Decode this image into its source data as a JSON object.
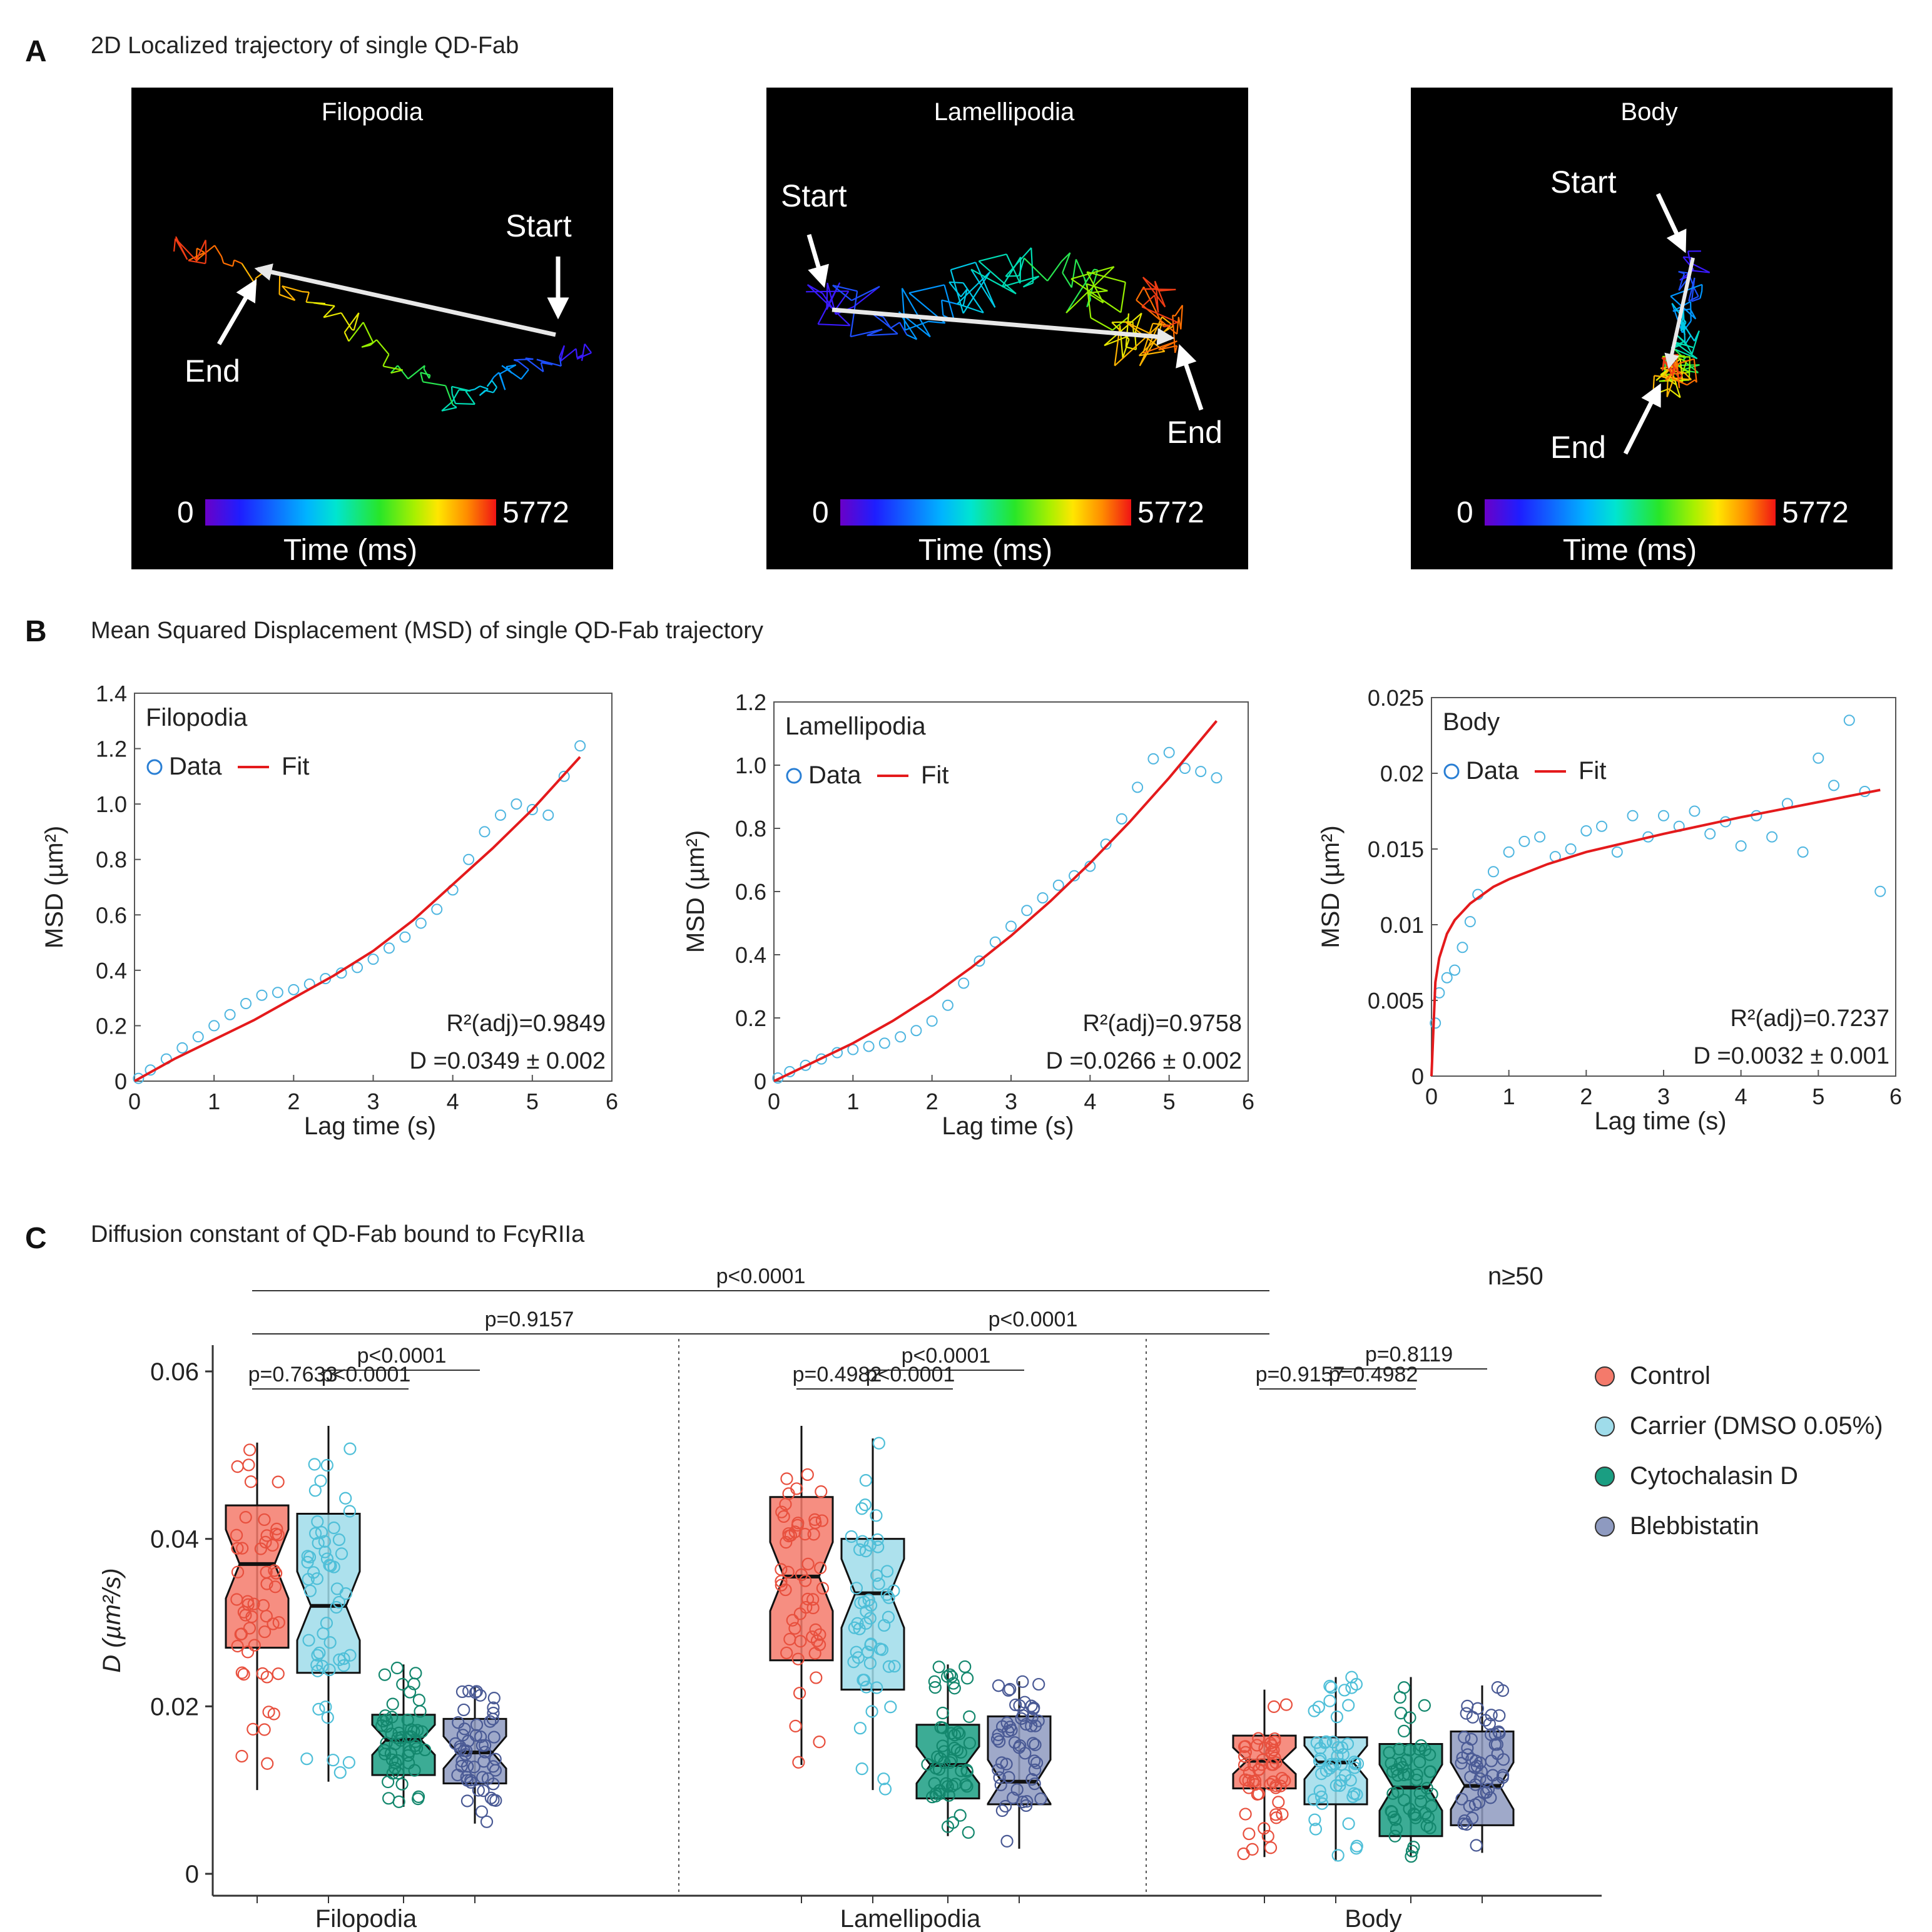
{
  "panel_a": {
    "letter": "A",
    "title": "2D Localized trajectory of single QD-Fab",
    "colorbar": {
      "min_label": "0",
      "max_label": "5772",
      "label": "Time (ms)"
    },
    "start_label": "Start",
    "end_label": "End",
    "panels": [
      {
        "title": "Filopodia"
      },
      {
        "title": "Lamellipodia"
      },
      {
        "title": "Body"
      }
    ]
  },
  "panel_b": {
    "letter": "B",
    "title": "Mean Squared Displacement (MSD) of single QD-Fab trajectory",
    "legend_data": "Data",
    "legend_fit": "Fit",
    "xlabel": "Lag time (s)",
    "ylabel": "MSD (µm²)",
    "colors": {
      "data": "#4fb6e0",
      "fit": "#e41a1c"
    }
  },
  "panel_c": {
    "letter": "C",
    "title": "Diffusion constant of QD-Fab bound to FcγRIIa",
    "n_label": "n≥50",
    "ylabel": "D (µm²/s)",
    "legend": [
      {
        "label": "Control",
        "color": "#f47a6b",
        "edge": "#e8503e"
      },
      {
        "label": "Carrier (DMSO 0.05%)",
        "color": "#9fdcea",
        "edge": "#4fbfd8"
      },
      {
        "label": "Cytochalasin D",
        "color": "#1a9e82",
        "edge": "#13876d"
      },
      {
        "label": "Blebbistatin",
        "color": "#8e9ac0",
        "edge": "#4a5a95"
      }
    ]
  },
  "chart_data": [
    {
      "type": "scatter",
      "title": "Filopodia",
      "xlabel": "Lag time (s)",
      "ylabel": "MSD (µm²)",
      "xlim": [
        0,
        6
      ],
      "ylim": [
        0,
        1.4
      ],
      "xticks": [
        "0",
        "1",
        "2",
        "3",
        "4",
        "5",
        "6"
      ],
      "yticks": [
        "0",
        "0.2",
        "0.4",
        "0.6",
        "0.8",
        "1.0",
        "1.2",
        "1.4"
      ],
      "series": [
        {
          "name": "Data",
          "x": [
            0.05,
            0.2,
            0.4,
            0.6,
            0.8,
            1.0,
            1.2,
            1.4,
            1.6,
            1.8,
            2.0,
            2.2,
            2.4,
            2.6,
            2.8,
            3.0,
            3.2,
            3.4,
            3.6,
            3.8,
            4.0,
            4.2,
            4.4,
            4.6,
            4.8,
            5.0,
            5.2,
            5.4,
            5.6
          ],
          "y": [
            0.01,
            0.04,
            0.08,
            0.12,
            0.16,
            0.2,
            0.24,
            0.28,
            0.31,
            0.32,
            0.33,
            0.35,
            0.37,
            0.39,
            0.41,
            0.44,
            0.48,
            0.52,
            0.57,
            0.62,
            0.69,
            0.8,
            0.9,
            0.96,
            1.0,
            0.98,
            0.96,
            1.1,
            1.21
          ]
        },
        {
          "name": "Fit",
          "x": [
            0,
            0.5,
            1,
            1.5,
            2,
            2.5,
            3,
            3.5,
            4,
            4.5,
            5,
            5.6
          ],
          "y": [
            0,
            0.08,
            0.15,
            0.22,
            0.3,
            0.38,
            0.47,
            0.58,
            0.71,
            0.84,
            0.98,
            1.17
          ]
        }
      ],
      "annotations": [
        "R²(adj)=0.9849",
        "D =0.0349 ± 0.002"
      ]
    },
    {
      "type": "scatter",
      "title": "Lamellipodia",
      "xlabel": "Lag time (s)",
      "ylabel": "MSD (µm²)",
      "xlim": [
        0,
        6
      ],
      "ylim": [
        0,
        1.2
      ],
      "xticks": [
        "0",
        "1",
        "2",
        "3",
        "4",
        "5",
        "6"
      ],
      "yticks": [
        "0",
        "0.2",
        "0.4",
        "0.6",
        "0.8",
        "1.0",
        "1.2"
      ],
      "series": [
        {
          "name": "Data",
          "x": [
            0.05,
            0.2,
            0.4,
            0.6,
            0.8,
            1.0,
            1.2,
            1.4,
            1.6,
            1.8,
            2.0,
            2.2,
            2.4,
            2.6,
            2.8,
            3.0,
            3.2,
            3.4,
            3.6,
            3.8,
            4.0,
            4.2,
            4.4,
            4.6,
            4.8,
            5.0,
            5.2,
            5.4,
            5.6
          ],
          "y": [
            0.01,
            0.03,
            0.05,
            0.07,
            0.09,
            0.1,
            0.11,
            0.12,
            0.14,
            0.16,
            0.19,
            0.24,
            0.31,
            0.38,
            0.44,
            0.49,
            0.54,
            0.58,
            0.62,
            0.65,
            0.68,
            0.75,
            0.83,
            0.93,
            1.02,
            1.04,
            0.99,
            0.98,
            0.96
          ]
        },
        {
          "name": "Fit",
          "x": [
            0,
            0.5,
            1,
            1.5,
            2,
            2.5,
            3,
            3.5,
            4,
            4.5,
            5,
            5.6
          ],
          "y": [
            0,
            0.06,
            0.12,
            0.19,
            0.27,
            0.36,
            0.46,
            0.57,
            0.69,
            0.82,
            0.96,
            1.14
          ]
        }
      ],
      "annotations": [
        "R²(adj)=0.9758",
        "D =0.0266 ± 0.002"
      ]
    },
    {
      "type": "scatter",
      "title": "Body",
      "xlabel": "Lag time (s)",
      "ylabel": "MSD (µm²)",
      "xlim": [
        0,
        6
      ],
      "ylim": [
        0,
        0.025
      ],
      "xticks": [
        "0",
        "1",
        "2",
        "3",
        "4",
        "5",
        "6"
      ],
      "yticks": [
        "0",
        "0.005",
        "0.01",
        "0.015",
        "0.02",
        "0.025"
      ],
      "series": [
        {
          "name": "Data",
          "x": [
            0.05,
            0.1,
            0.2,
            0.3,
            0.4,
            0.5,
            0.6,
            0.8,
            1.0,
            1.2,
            1.4,
            1.6,
            1.8,
            2.0,
            2.2,
            2.4,
            2.6,
            2.8,
            3.0,
            3.2,
            3.4,
            3.6,
            3.8,
            4.0,
            4.2,
            4.4,
            4.6,
            4.8,
            5.0,
            5.2,
            5.4,
            5.6,
            5.8
          ],
          "y": [
            0.0035,
            0.0055,
            0.0065,
            0.007,
            0.0085,
            0.0102,
            0.012,
            0.0135,
            0.0148,
            0.0155,
            0.0158,
            0.0145,
            0.015,
            0.0162,
            0.0165,
            0.0148,
            0.0172,
            0.0158,
            0.0172,
            0.0165,
            0.0175,
            0.016,
            0.0168,
            0.0152,
            0.0172,
            0.0158,
            0.018,
            0.0148,
            0.021,
            0.0192,
            0.0235,
            0.0188,
            0.0122
          ]
        },
        {
          "name": "Fit",
          "x": [
            0,
            0.05,
            0.1,
            0.2,
            0.3,
            0.5,
            0.8,
            1,
            1.5,
            2,
            3,
            4,
            5,
            5.8
          ],
          "y": [
            0,
            0.0062,
            0.0078,
            0.0094,
            0.0103,
            0.0114,
            0.0125,
            0.013,
            0.014,
            0.0148,
            0.016,
            0.0171,
            0.0181,
            0.0189
          ]
        }
      ],
      "annotations": [
        "R²(adj)=0.7237",
        "D =0.0032 ± 0.001"
      ]
    },
    {
      "type": "box",
      "title": "",
      "ylabel": "D (µm²/s)",
      "ylim": [
        0,
        0.062
      ],
      "yticks": [
        "0",
        "0.02",
        "0.04",
        "0.06"
      ],
      "groups": [
        "Filopodia",
        "Lamellipodia",
        "Body"
      ],
      "series_names": [
        "Control",
        "Carrier (DMSO 0.05%)",
        "Cytochalasin D",
        "Blebbistatin"
      ],
      "boxes": [
        {
          "group": "Filopodia",
          "series": "Control",
          "min": 0.01,
          "q1": 0.027,
          "median": 0.037,
          "q3": 0.044,
          "max": 0.0515
        },
        {
          "group": "Filopodia",
          "series": "Carrier (DMSO 0.05%)",
          "min": 0.011,
          "q1": 0.024,
          "median": 0.032,
          "q3": 0.043,
          "max": 0.0535
        },
        {
          "group": "Filopodia",
          "series": "Cytochalasin D",
          "min": 0.008,
          "q1": 0.0118,
          "median": 0.016,
          "q3": 0.019,
          "max": 0.025
        },
        {
          "group": "Filopodia",
          "series": "Blebbistatin",
          "min": 0.006,
          "q1": 0.0108,
          "median": 0.0145,
          "q3": 0.0185,
          "max": 0.0225
        },
        {
          "group": "Lamellipodia",
          "series": "Control",
          "min": 0.013,
          "q1": 0.0255,
          "median": 0.0355,
          "q3": 0.045,
          "max": 0.0535
        },
        {
          "group": "Lamellipodia",
          "series": "Carrier (DMSO 0.05%)",
          "min": 0.01,
          "q1": 0.022,
          "median": 0.0335,
          "q3": 0.04,
          "max": 0.052
        },
        {
          "group": "Lamellipodia",
          "series": "Cytochalasin D",
          "min": 0.0045,
          "q1": 0.009,
          "median": 0.013,
          "q3": 0.0178,
          "max": 0.025
        },
        {
          "group": "Lamellipodia",
          "series": "Blebbistatin",
          "min": 0.003,
          "q1": 0.0083,
          "median": 0.011,
          "q3": 0.0188,
          "max": 0.023
        },
        {
          "group": "Body",
          "series": "Control",
          "min": 0.002,
          "q1": 0.0102,
          "median": 0.0135,
          "q3": 0.0165,
          "max": 0.022
        },
        {
          "group": "Body",
          "series": "Carrier (DMSO 0.05%)",
          "min": 0.0015,
          "q1": 0.0083,
          "median": 0.0133,
          "q3": 0.0163,
          "max": 0.0235
        },
        {
          "group": "Body",
          "series": "Cytochalasin D",
          "min": 0.002,
          "q1": 0.0045,
          "median": 0.0103,
          "q3": 0.0155,
          "max": 0.0235
        },
        {
          "group": "Body",
          "series": "Blebbistatin",
          "min": 0.0025,
          "q1": 0.0058,
          "median": 0.0105,
          "q3": 0.017,
          "max": 0.0225
        }
      ],
      "significance": [
        {
          "label": "p<0.0001",
          "from_group": "Filopodia",
          "from_series": "Control",
          "to_group": "Body",
          "to_series": "Control"
        },
        {
          "label": "p=0.9157",
          "from_group": "Filopodia",
          "from_series": "Control",
          "to_group": "Lamellipodia",
          "to_series": "Control"
        },
        {
          "label": "p<0.0001",
          "from_group": "Lamellipodia",
          "from_series": "Control",
          "to_group": "Body",
          "to_series": "Control"
        },
        {
          "label": "p<0.0001",
          "from_group": "Filopodia",
          "from_series": "Carrier (DMSO 0.05%)",
          "to_group": "Filopodia",
          "to_series": "Blebbistatin"
        },
        {
          "label": "p=0.7633",
          "from_group": "Filopodia",
          "from_series": "Control",
          "to_group": "Filopodia",
          "to_series": "Carrier (DMSO 0.05%)"
        },
        {
          "label": "p<0.0001",
          "from_group": "Filopodia",
          "from_series": "Carrier (DMSO 0.05%)",
          "to_group": "Filopodia",
          "to_series": "Cytochalasin D"
        },
        {
          "label": "p<0.0001",
          "from_group": "Lamellipodia",
          "from_series": "Carrier (DMSO 0.05%)",
          "to_group": "Lamellipodia",
          "to_series": "Blebbistatin"
        },
        {
          "label": "p=0.4982",
          "from_group": "Lamellipodia",
          "from_series": "Control",
          "to_group": "Lamellipodia",
          "to_series": "Carrier (DMSO 0.05%)"
        },
        {
          "label": "p<0.0001",
          "from_group": "Lamellipodia",
          "from_series": "Carrier (DMSO 0.05%)",
          "to_group": "Lamellipodia",
          "to_series": "Cytochalasin D"
        },
        {
          "label": "p=0.8119",
          "from_group": "Body",
          "from_series": "Carrier (DMSO 0.05%)",
          "to_group": "Body",
          "to_series": "Blebbistatin"
        },
        {
          "label": "p=0.9157",
          "from_group": "Body",
          "from_series": "Control",
          "to_group": "Body",
          "to_series": "Carrier (DMSO 0.05%)"
        },
        {
          "label": "p=0.4982",
          "from_group": "Body",
          "from_series": "Carrier (DMSO 0.05%)",
          "to_group": "Body",
          "to_series": "Cytochalasin D"
        }
      ]
    }
  ]
}
